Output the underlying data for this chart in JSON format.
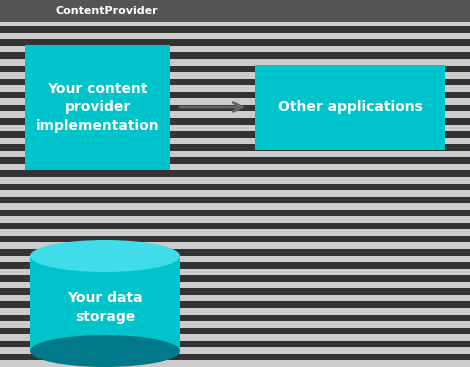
{
  "background_color": "#c0c0c0",
  "title_text": "ContentProvider",
  "title_bar_color": "#555555",
  "title_fontsize": 8,
  "teal_color": "#00c4cc",
  "teal_top": "#40dde8",
  "teal_dark": "#007a8a",
  "white_text": "#ffffff",
  "box1_label": "Your content\nprovider\nimplementation",
  "box2_label": "Other applications",
  "cylinder_label": "Your data\nstorage",
  "stripe_dark": "#333333",
  "stripe_light": "#cccccc",
  "stripe_count": 28,
  "label_fontsize": 10,
  "fig_w": 4.7,
  "fig_h": 3.67,
  "dpi": 100
}
